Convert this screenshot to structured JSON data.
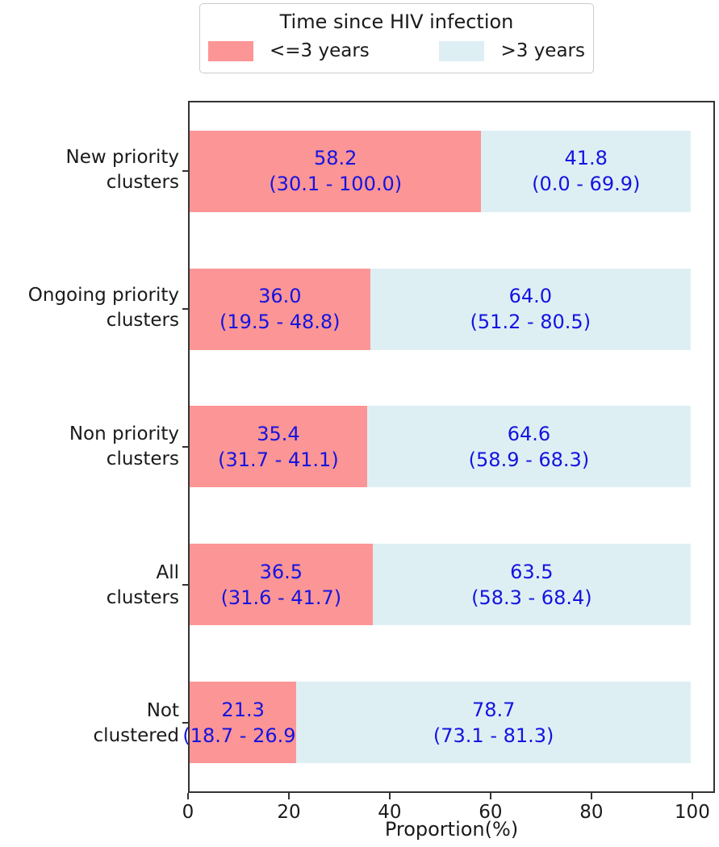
{
  "chart_data": {
    "type": "bar",
    "orientation": "horizontal",
    "stacked": true,
    "xlabel": "Proportion(%)",
    "ylabel": "",
    "xlim": [
      0,
      104.5
    ],
    "xticks": [
      0,
      20,
      40,
      60,
      80,
      100
    ],
    "xtick_labels": [
      "0",
      "20",
      "40",
      "60",
      "80",
      "100"
    ],
    "grid": false,
    "legend": {
      "title": "Time since HIV infection",
      "position": "top center",
      "entries": [
        {
          "label": "<=3 years",
          "color": "#FC9595"
        },
        {
          "label": ">3 years",
          "color": "#DEEFF4"
        }
      ]
    },
    "colors": {
      "le3": "#FC9595",
      "gt3": "#DEEFF4",
      "annotation": "#1414E0",
      "axis": "#333333"
    },
    "series_names": [
      "<=3 years",
      ">3 years"
    ],
    "rows": [
      {
        "category": [
          "New priority",
          "clusters"
        ],
        "le3": {
          "value": 58.2,
          "label": "58.2",
          "ci": "(30.1 - 100.0)"
        },
        "gt3": {
          "value": 41.8,
          "label": "41.8",
          "ci": "(0.0 - 69.9)"
        }
      },
      {
        "category": [
          "Ongoing priority",
          "clusters"
        ],
        "le3": {
          "value": 36.0,
          "label": "36.0",
          "ci": "(19.5 - 48.8)"
        },
        "gt3": {
          "value": 64.0,
          "label": "64.0",
          "ci": "(51.2 - 80.5)"
        }
      },
      {
        "category": [
          "Non priority",
          "clusters"
        ],
        "le3": {
          "value": 35.4,
          "label": "35.4",
          "ci": "(31.7 - 41.1)"
        },
        "gt3": {
          "value": 64.6,
          "label": "64.6",
          "ci": "(58.9 - 68.3)"
        }
      },
      {
        "category": [
          "All",
          "clusters"
        ],
        "le3": {
          "value": 36.5,
          "label": "36.5",
          "ci": "(31.6 - 41.7)"
        },
        "gt3": {
          "value": 63.5,
          "label": "63.5",
          "ci": "(58.3 - 68.4)"
        }
      },
      {
        "category": [
          "Not",
          "clustered"
        ],
        "le3": {
          "value": 21.3,
          "label": "21.3",
          "ci": "(18.7 - 26.9)"
        },
        "gt3": {
          "value": 78.7,
          "label": "78.7",
          "ci": "(73.1 - 81.3)"
        }
      }
    ]
  }
}
